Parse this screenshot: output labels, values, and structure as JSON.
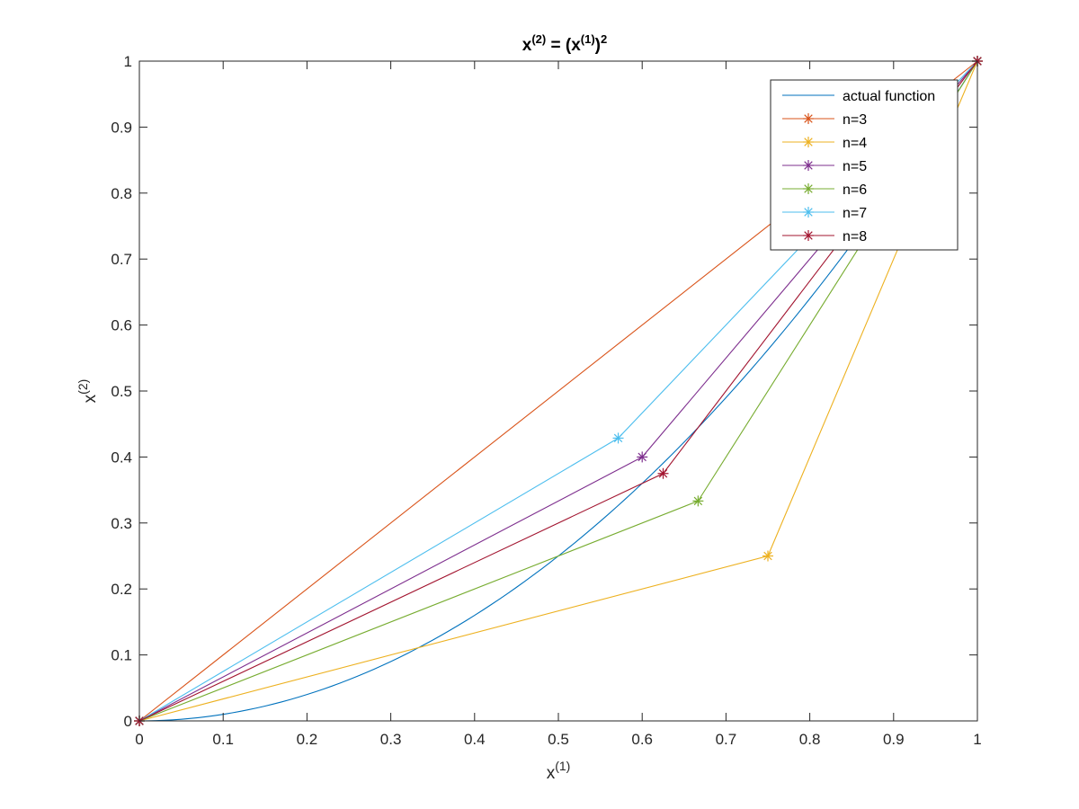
{
  "chart_data": {
    "type": "line",
    "title": {
      "base": "x",
      "sup1": "(2)",
      "mid": " = (x",
      "sup2": "(1)",
      "end": ")",
      "sup3": "2"
    },
    "xlabel": {
      "base": "x",
      "sup": "(1)"
    },
    "ylabel": {
      "base": "x",
      "sup": "(2)"
    },
    "xlim": [
      0,
      1
    ],
    "ylim": [
      0,
      1
    ],
    "xticks": [
      "0",
      "0.1",
      "0.2",
      "0.3",
      "0.4",
      "0.5",
      "0.6",
      "0.7",
      "0.8",
      "0.9",
      "1"
    ],
    "yticks": [
      "0",
      "0.1",
      "0.2",
      "0.3",
      "0.4",
      "0.5",
      "0.6",
      "0.7",
      "0.8",
      "0.9",
      "1"
    ],
    "grid": false,
    "legend_position": "top-right",
    "series": [
      {
        "name": "actual function",
        "color": "#0072BD",
        "marker": "none",
        "function": "x^2"
      },
      {
        "name": "n=3",
        "color": "#D95319",
        "marker": "asterisk",
        "x": [
          0,
          1
        ],
        "y": [
          0,
          1
        ]
      },
      {
        "name": "n=4",
        "color": "#EDB120",
        "marker": "asterisk",
        "x": [
          0,
          0.75,
          1
        ],
        "y": [
          0,
          0.25,
          1
        ]
      },
      {
        "name": "n=5",
        "color": "#7E2F8E",
        "marker": "asterisk",
        "x": [
          0,
          0.6,
          1
        ],
        "y": [
          0,
          0.4,
          1
        ]
      },
      {
        "name": "n=6",
        "color": "#77AC30",
        "marker": "asterisk",
        "x": [
          0,
          0.6667,
          1
        ],
        "y": [
          0,
          0.3333,
          1
        ]
      },
      {
        "name": "n=7",
        "color": "#4DBEEE",
        "marker": "asterisk",
        "x": [
          0,
          0.5714,
          1
        ],
        "y": [
          0,
          0.4286,
          1
        ]
      },
      {
        "name": "n=8",
        "color": "#A2142F",
        "marker": "asterisk",
        "x": [
          0,
          0.625,
          1
        ],
        "y": [
          0,
          0.375,
          1
        ]
      }
    ]
  }
}
